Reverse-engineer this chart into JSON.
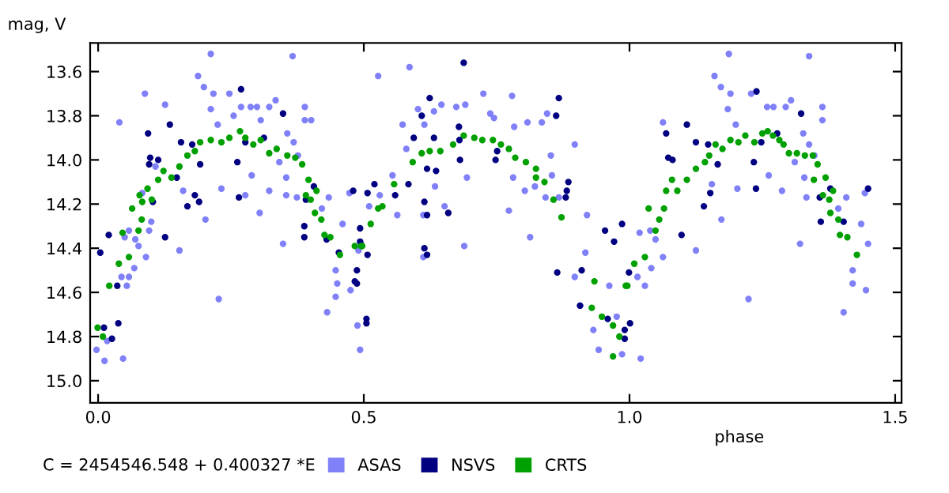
{
  "chart_data": {
    "type": "scatter",
    "xlabel": "phase",
    "ylabel": "mag, V",
    "annotations": [
      "C = 2454546.548 + 0.400327 *E"
    ],
    "xlim": [
      -0.015,
      1.512
    ],
    "ylim": [
      15.1,
      13.47
    ],
    "xticks": [
      {
        "value": 0,
        "label": "0.0"
      },
      0.5,
      {
        "value": 1,
        "label": "1.0"
      },
      1.5
    ],
    "yticks": [
      13.6,
      13.8,
      {
        "value": 14,
        "label": "14.0"
      },
      14.2,
      14.4,
      14.6,
      14.8,
      {
        "value": 15,
        "label": "15.0"
      }
    ],
    "grid": false,
    "legend": "bottom",
    "marker": "circle",
    "series": [
      {
        "name": "ASAS",
        "color": "#8080f8",
        "x": [
          -0.003,
          0.012,
          0.047,
          0.017,
          0.044,
          0.058,
          0.054,
          0.068,
          0.09,
          0.076,
          0.07,
          0.05,
          0.058,
          0.04,
          0.088,
          0.083,
          0.096,
          0.1,
          0.108,
          0.126,
          0.153,
          0.16,
          0.188,
          0.199,
          0.212,
          0.202,
          0.217,
          0.212,
          0.225,
          0.232,
          0.227,
          0.247,
          0.255,
          0.269,
          0.287,
          0.299,
          0.322,
          0.334,
          0.306,
          0.289,
          0.277,
          0.304,
          0.322,
          0.348,
          0.356,
          0.366,
          0.368,
          0.341,
          0.354,
          0.376,
          0.389,
          0.389,
          0.401,
          0.354,
          0.374,
          0.421,
          0.434,
          0.46,
          0.473,
          0.447,
          0.45,
          0.475,
          0.49,
          0.447,
          0.431,
          0.488,
          0.493,
          0.527,
          0.586,
          0.49,
          0.51,
          0.53,
          0.554,
          0.573,
          0.58,
          0.602,
          0.614,
          0.632,
          0.646,
          0.674,
          0.691,
          0.725,
          0.738,
          0.745,
          0.779,
          0.783,
          0.808,
          0.835,
          0.845,
          0.897,
          0.852,
          0.854,
          0.822,
          0.803,
          0.781,
          0.842,
          0.867,
          0.92,
          0.773,
          0.813,
          0.694,
          0.652,
          0.634,
          0.612,
          0.612,
          0.689,
          0.563,
          0.495,
          0.917,
          0.897,
          0.962,
          0.932,
          0.942,
          0.986,
          0.976,
          0.907,
          1.021,
          1.015,
          1.029,
          1.041,
          1.063,
          1.049,
          1.019,
          1.039,
          1.063,
          1.16,
          1.172,
          1.187,
          1.19,
          1.185,
          1.2,
          1.173,
          1.155,
          1.203,
          1.229,
          1.259,
          1.271,
          1.294,
          1.304,
          1.287,
          1.262,
          1.321,
          1.327,
          1.338,
          1.338,
          1.311,
          1.348,
          1.363,
          1.363,
          1.329,
          1.333,
          1.393,
          1.408,
          1.436,
          1.443,
          1.42,
          1.42,
          1.445,
          1.449,
          1.403,
          1.224,
          1.125
        ],
        "values": [
          14.86,
          14.91,
          14.9,
          14.82,
          14.53,
          14.53,
          14.57,
          14.49,
          14.44,
          14.39,
          14.36,
          14.35,
          14.32,
          13.83,
          13.7,
          14.15,
          14.32,
          14.28,
          14.03,
          13.75,
          14.41,
          14.14,
          13.62,
          13.67,
          13.52,
          14.27,
          13.7,
          13.77,
          13.84,
          14.13,
          14.63,
          13.7,
          13.8,
          13.76,
          13.76,
          13.76,
          13.76,
          13.73,
          13.82,
          14.07,
          14.16,
          14.24,
          14.14,
          14.38,
          13.88,
          13.53,
          13.92,
          14.01,
          14.08,
          13.98,
          13.76,
          13.82,
          13.82,
          14.16,
          14.17,
          14.22,
          14.17,
          14.29,
          14.15,
          14.5,
          14.56,
          14.59,
          14.4,
          14.62,
          14.69,
          14.75,
          14.86,
          13.62,
          13.58,
          14.41,
          14.21,
          14.16,
          14.07,
          13.84,
          13.95,
          13.77,
          13.84,
          13.78,
          13.75,
          13.76,
          13.75,
          13.7,
          13.79,
          13.81,
          13.71,
          13.85,
          13.83,
          13.83,
          13.79,
          13.93,
          13.98,
          14.07,
          14.12,
          14.14,
          14.08,
          14.17,
          14.17,
          14.25,
          14.23,
          14.35,
          14.08,
          14.21,
          14.12,
          14.25,
          14.44,
          14.39,
          14.25,
          14.38,
          14.42,
          14.53,
          14.57,
          14.77,
          14.86,
          14.88,
          14.71,
          14.66,
          14.9,
          14.53,
          14.57,
          14.49,
          14.44,
          14.36,
          14.33,
          14.32,
          13.83,
          13.62,
          13.67,
          13.52,
          13.7,
          13.77,
          13.84,
          14.27,
          14.11,
          14.13,
          13.7,
          13.76,
          13.76,
          13.76,
          13.73,
          14.14,
          14.07,
          14.38,
          13.88,
          13.53,
          13.93,
          14.01,
          13.98,
          13.76,
          13.82,
          14.08,
          14.17,
          14.22,
          14.17,
          14.29,
          14.15,
          14.5,
          14.56,
          14.59,
          14.38,
          14.69,
          14.63,
          14.41
        ]
      },
      {
        "name": "NSVS",
        "color": "#000080",
        "x": [
          0.004,
          0.011,
          0.02,
          0.036,
          0.038,
          0.026,
          0.094,
          0.098,
          0.096,
          0.113,
          0.103,
          0.126,
          0.135,
          0.156,
          0.177,
          0.192,
          0.19,
          0.182,
          0.168,
          0.148,
          0.269,
          0.262,
          0.277,
          0.265,
          0.312,
          0.348,
          0.406,
          0.391,
          0.388,
          0.388,
          0.43,
          0.453,
          0.48,
          0.493,
          0.487,
          0.483,
          0.688,
          0.624,
          0.609,
          0.594,
          0.632,
          0.68,
          0.681,
          0.679,
          0.636,
          0.619,
          0.584,
          0.559,
          0.52,
          0.507,
          0.493,
          0.507,
          0.487,
          0.505,
          0.505,
          0.614,
          0.619,
          0.659,
          0.614,
          0.619,
          0.751,
          0.748,
          0.867,
          0.862,
          0.885,
          0.882,
          0.88,
          0.864,
          0.91,
          0.954,
          0.971,
          0.986,
          0.999,
          0.907,
          0.959,
          0.991,
          1.069,
          1.108,
          1.073,
          1.081,
          1.125,
          1.148,
          1.166,
          1.152,
          1.14,
          1.098,
          1.001,
          0.991,
          1.239,
          1.234,
          1.248,
          1.278,
          1.323,
          1.238,
          1.358,
          1.36,
          1.378,
          1.403,
          1.449
        ],
        "values": [
          14.42,
          14.76,
          14.34,
          14.57,
          14.74,
          14.81,
          13.88,
          13.99,
          14.02,
          14.0,
          14.19,
          14.35,
          13.84,
          13.92,
          13.93,
          14.02,
          14.19,
          14.16,
          14.21,
          14.08,
          13.68,
          14.01,
          13.92,
          14.17,
          13.9,
          13.79,
          14.12,
          14.18,
          14.3,
          14.35,
          14.36,
          14.42,
          14.14,
          14.37,
          14.56,
          14.55,
          13.56,
          13.72,
          13.8,
          13.9,
          13.9,
          13.91,
          14.0,
          13.85,
          14.05,
          14.04,
          14.11,
          14.16,
          14.11,
          14.15,
          14.31,
          14.43,
          14.5,
          14.72,
          14.74,
          14.19,
          14.25,
          14.24,
          14.4,
          14.43,
          13.96,
          14.0,
          13.72,
          13.8,
          14.1,
          14.14,
          14.17,
          14.51,
          14.5,
          14.32,
          14.37,
          14.29,
          14.51,
          14.66,
          14.72,
          14.77,
          13.88,
          13.84,
          13.99,
          14.0,
          13.92,
          13.93,
          14.02,
          14.15,
          14.21,
          14.34,
          14.74,
          14.81,
          13.69,
          14.01,
          13.92,
          13.88,
          13.79,
          14.13,
          14.17,
          14.28,
          14.13,
          14.28,
          14.13
        ]
      },
      {
        "name": "CRTS",
        "color": "#00a000",
        "x": [
          -0.001,
          0.009,
          0.021,
          0.039,
          0.058,
          0.046,
          0.064,
          0.078,
          0.083,
          0.093,
          0.101,
          0.076,
          0.082,
          0.113,
          0.123,
          0.138,
          0.153,
          0.168,
          0.182,
          0.192,
          0.212,
          0.232,
          0.247,
          0.267,
          0.277,
          0.292,
          0.306,
          0.322,
          0.336,
          0.356,
          0.371,
          0.384,
          0.396,
          0.391,
          0.4,
          0.411,
          0.408,
          0.42,
          0.426,
          0.437,
          0.455,
          0.483,
          0.495,
          0.497,
          0.513,
          0.527,
          0.535,
          0.557,
          0.592,
          0.609,
          0.624,
          0.644,
          0.668,
          0.688,
          0.708,
          0.723,
          0.743,
          0.758,
          0.773,
          0.785,
          0.805,
          0.824,
          0.84,
          0.824,
          0.857,
          0.872,
          0.929,
          0.969,
          0.981,
          0.993,
          0.934,
          0.948,
          0.969,
          0.996,
          1.009,
          1.029,
          1.049,
          1.056,
          1.065,
          1.069,
          1.036,
          1.08,
          1.09,
          1.108,
          1.125,
          1.142,
          1.15,
          1.162,
          1.175,
          1.19,
          1.205,
          1.218,
          1.235,
          1.25,
          1.26,
          1.27,
          1.282,
          1.29,
          1.3,
          1.315,
          1.33,
          1.345,
          1.347,
          1.354,
          1.369,
          1.364,
          1.376,
          1.378,
          1.383,
          1.393,
          1.396,
          1.41,
          1.428
        ],
        "values": [
          14.76,
          14.8,
          14.57,
          14.47,
          14.44,
          14.33,
          14.22,
          14.16,
          14.19,
          14.13,
          14.18,
          14.32,
          14.27,
          14.09,
          14.05,
          14.08,
          14.03,
          13.98,
          13.96,
          13.92,
          13.91,
          13.92,
          13.9,
          13.87,
          13.9,
          13.93,
          13.91,
          13.97,
          13.95,
          13.98,
          13.99,
          14.02,
          14.09,
          14.16,
          14.18,
          14.14,
          14.24,
          14.27,
          14.34,
          14.35,
          14.43,
          14.39,
          14.39,
          14.39,
          14.29,
          14.22,
          14.21,
          14.11,
          14.01,
          13.97,
          13.96,
          13.96,
          13.93,
          13.89,
          13.9,
          13.91,
          13.91,
          13.93,
          13.95,
          13.99,
          14.01,
          14.04,
          14.1,
          14.08,
          14.18,
          14.26,
          14.67,
          14.75,
          14.8,
          14.57,
          14.55,
          14.71,
          14.89,
          14.57,
          14.47,
          14.44,
          14.32,
          14.27,
          14.22,
          14.14,
          14.22,
          14.09,
          14.14,
          14.09,
          14.04,
          14.01,
          13.98,
          13.93,
          13.95,
          13.91,
          13.92,
          13.89,
          13.92,
          13.88,
          13.87,
          13.89,
          13.91,
          13.93,
          13.97,
          13.97,
          13.98,
          13.98,
          14.09,
          14.02,
          14.08,
          14.16,
          14.18,
          14.24,
          14.14,
          14.27,
          14.34,
          14.35,
          14.43
        ]
      }
    ]
  }
}
